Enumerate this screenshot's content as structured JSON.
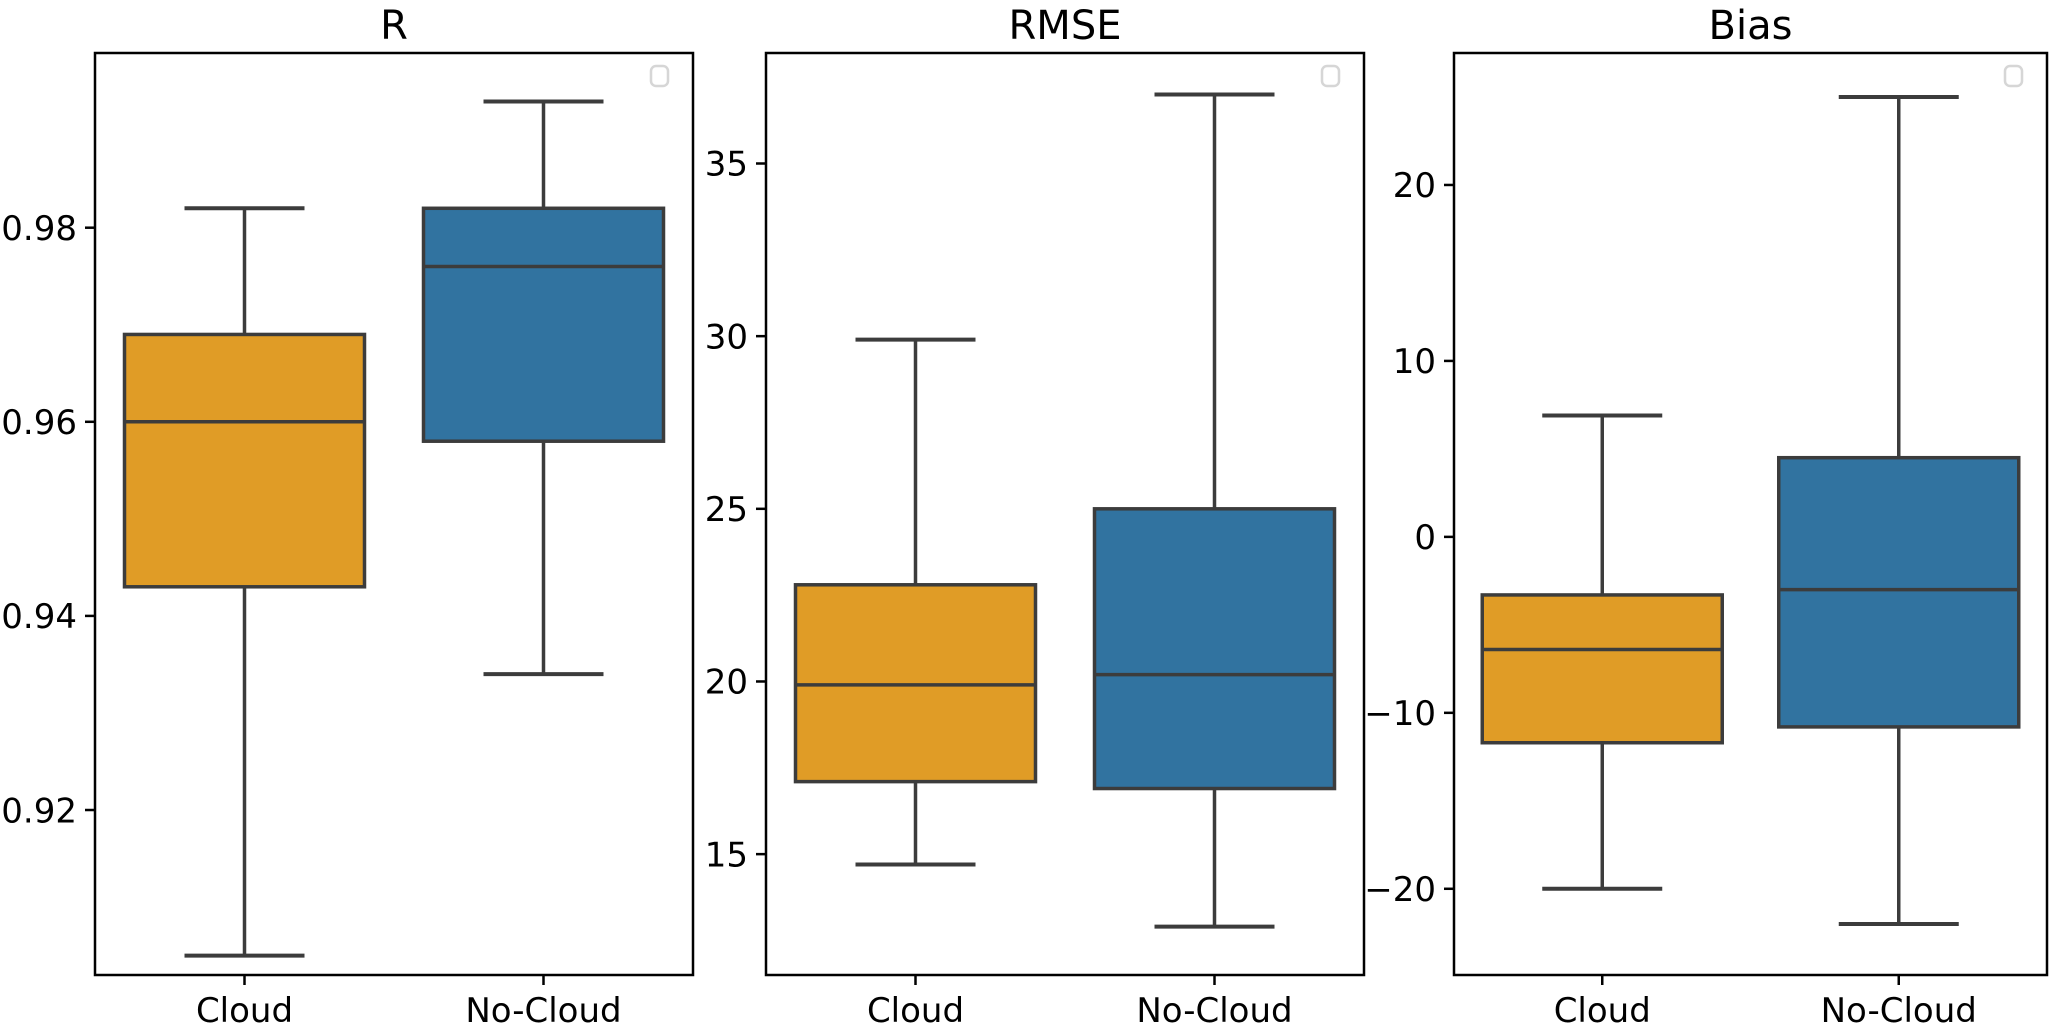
{
  "figure": {
    "background": "#ffffff"
  },
  "styles": {
    "cloud_color": "#E09C26",
    "no_cloud_color": "#3173A0",
    "box_edge_color": "#3C3C3C",
    "whisker_color": "#3C3C3C",
    "median_color": "#3C3C3C",
    "spine_color": "#000000",
    "legend_border_color": "#D6D6D6",
    "legend_fill": "#FFFFFF"
  },
  "chart_data": [
    {
      "type": "box",
      "title": "R",
      "categories": [
        "Cloud",
        "No-Cloud"
      ],
      "ylim": [
        0.903,
        0.998
      ],
      "yticks": [
        0.92,
        0.94,
        0.96,
        0.98
      ],
      "ytick_labels": [
        "0.92",
        "0.94",
        "0.96",
        "0.98"
      ],
      "grid": false,
      "legend_position": "upper-right-empty",
      "series": [
        {
          "name": "Cloud",
          "color_key": "cloud_color",
          "whisker_low": 0.905,
          "q1": 0.943,
          "median": 0.96,
          "q3": 0.969,
          "whisker_high": 0.982
        },
        {
          "name": "No-Cloud",
          "color_key": "no_cloud_color",
          "whisker_low": 0.934,
          "q1": 0.958,
          "median": 0.976,
          "q3": 0.982,
          "whisker_high": 0.993
        }
      ]
    },
    {
      "type": "box",
      "title": "RMSE",
      "categories": [
        "Cloud",
        "No-Cloud"
      ],
      "ylim": [
        11.5,
        38.2
      ],
      "yticks": [
        15,
        20,
        25,
        30,
        35
      ],
      "ytick_labels": [
        "15",
        "20",
        "25",
        "30",
        "35"
      ],
      "grid": false,
      "legend_position": "upper-right-empty",
      "series": [
        {
          "name": "Cloud",
          "color_key": "cloud_color",
          "whisker_low": 14.7,
          "q1": 17.1,
          "median": 19.9,
          "q3": 22.8,
          "whisker_high": 29.9
        },
        {
          "name": "No-Cloud",
          "color_key": "no_cloud_color",
          "whisker_low": 12.9,
          "q1": 16.9,
          "median": 20.2,
          "q3": 25.0,
          "whisker_high": 37.0
        }
      ]
    },
    {
      "type": "box",
      "title": "Bias",
      "categories": [
        "Cloud",
        "No-Cloud"
      ],
      "ylim": [
        -24.9,
        27.5
      ],
      "yticks": [
        -20,
        -10,
        0,
        10,
        20
      ],
      "ytick_labels": [
        "−20",
        "−10",
        "0",
        "10",
        "20"
      ],
      "grid": false,
      "legend_position": "upper-right-empty",
      "series": [
        {
          "name": "Cloud",
          "color_key": "cloud_color",
          "whisker_low": -20.0,
          "q1": -11.7,
          "median": -6.4,
          "q3": -3.3,
          "whisker_high": 6.9
        },
        {
          "name": "No-Cloud",
          "color_key": "no_cloud_color",
          "whisker_low": -22.0,
          "q1": -10.8,
          "median": -3.0,
          "q3": 4.5,
          "whisker_high": 25.0
        }
      ]
    }
  ]
}
